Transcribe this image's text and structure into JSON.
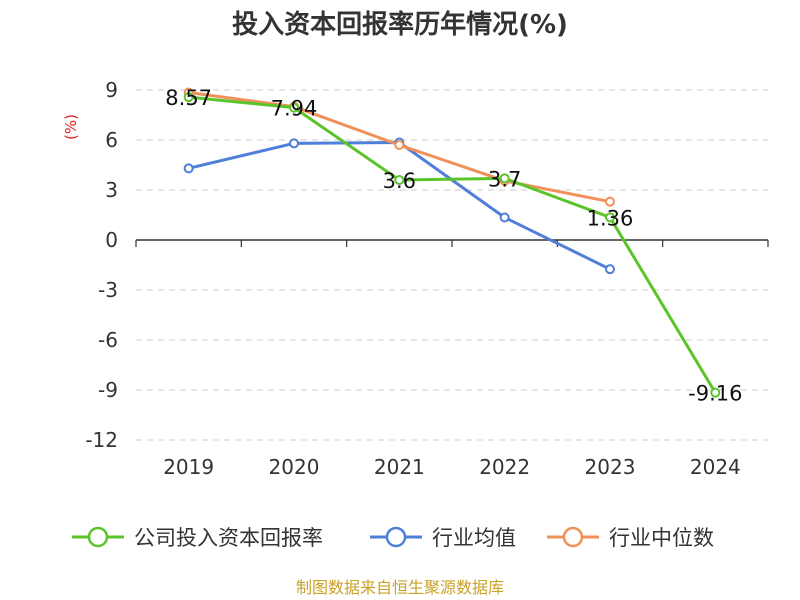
{
  "chart_data": {
    "type": "line",
    "title": "投入资本回报率历年情况(%)",
    "ylabel": "(%)",
    "categories": [
      "2019",
      "2020",
      "2021",
      "2022",
      "2023",
      "2024"
    ],
    "y_ticks": [
      "9",
      "6",
      "3",
      "0",
      "-3",
      "-6",
      "-9",
      "-12"
    ],
    "ylim": [
      -12,
      9
    ],
    "grid": true,
    "legend_position": "bottom",
    "series": [
      {
        "name": "公司投入资本回报率",
        "color": "#5cc42b",
        "values": [
          8.57,
          7.94,
          3.6,
          3.7,
          1.36,
          -9.16
        ],
        "labels": [
          "8.57",
          "7.94",
          "3.6",
          "3.7",
          "1.36",
          "-9.16"
        ]
      },
      {
        "name": "行业均值",
        "color": "#4f7fd8",
        "values": [
          4.3,
          5.8,
          5.85,
          1.35,
          -1.75,
          null
        ]
      },
      {
        "name": "行业中位数",
        "color": "#f0905a",
        "values": [
          8.85,
          8.0,
          5.7,
          3.55,
          2.3,
          null
        ]
      }
    ]
  },
  "source": "制图数据来自恒生聚源数据库"
}
